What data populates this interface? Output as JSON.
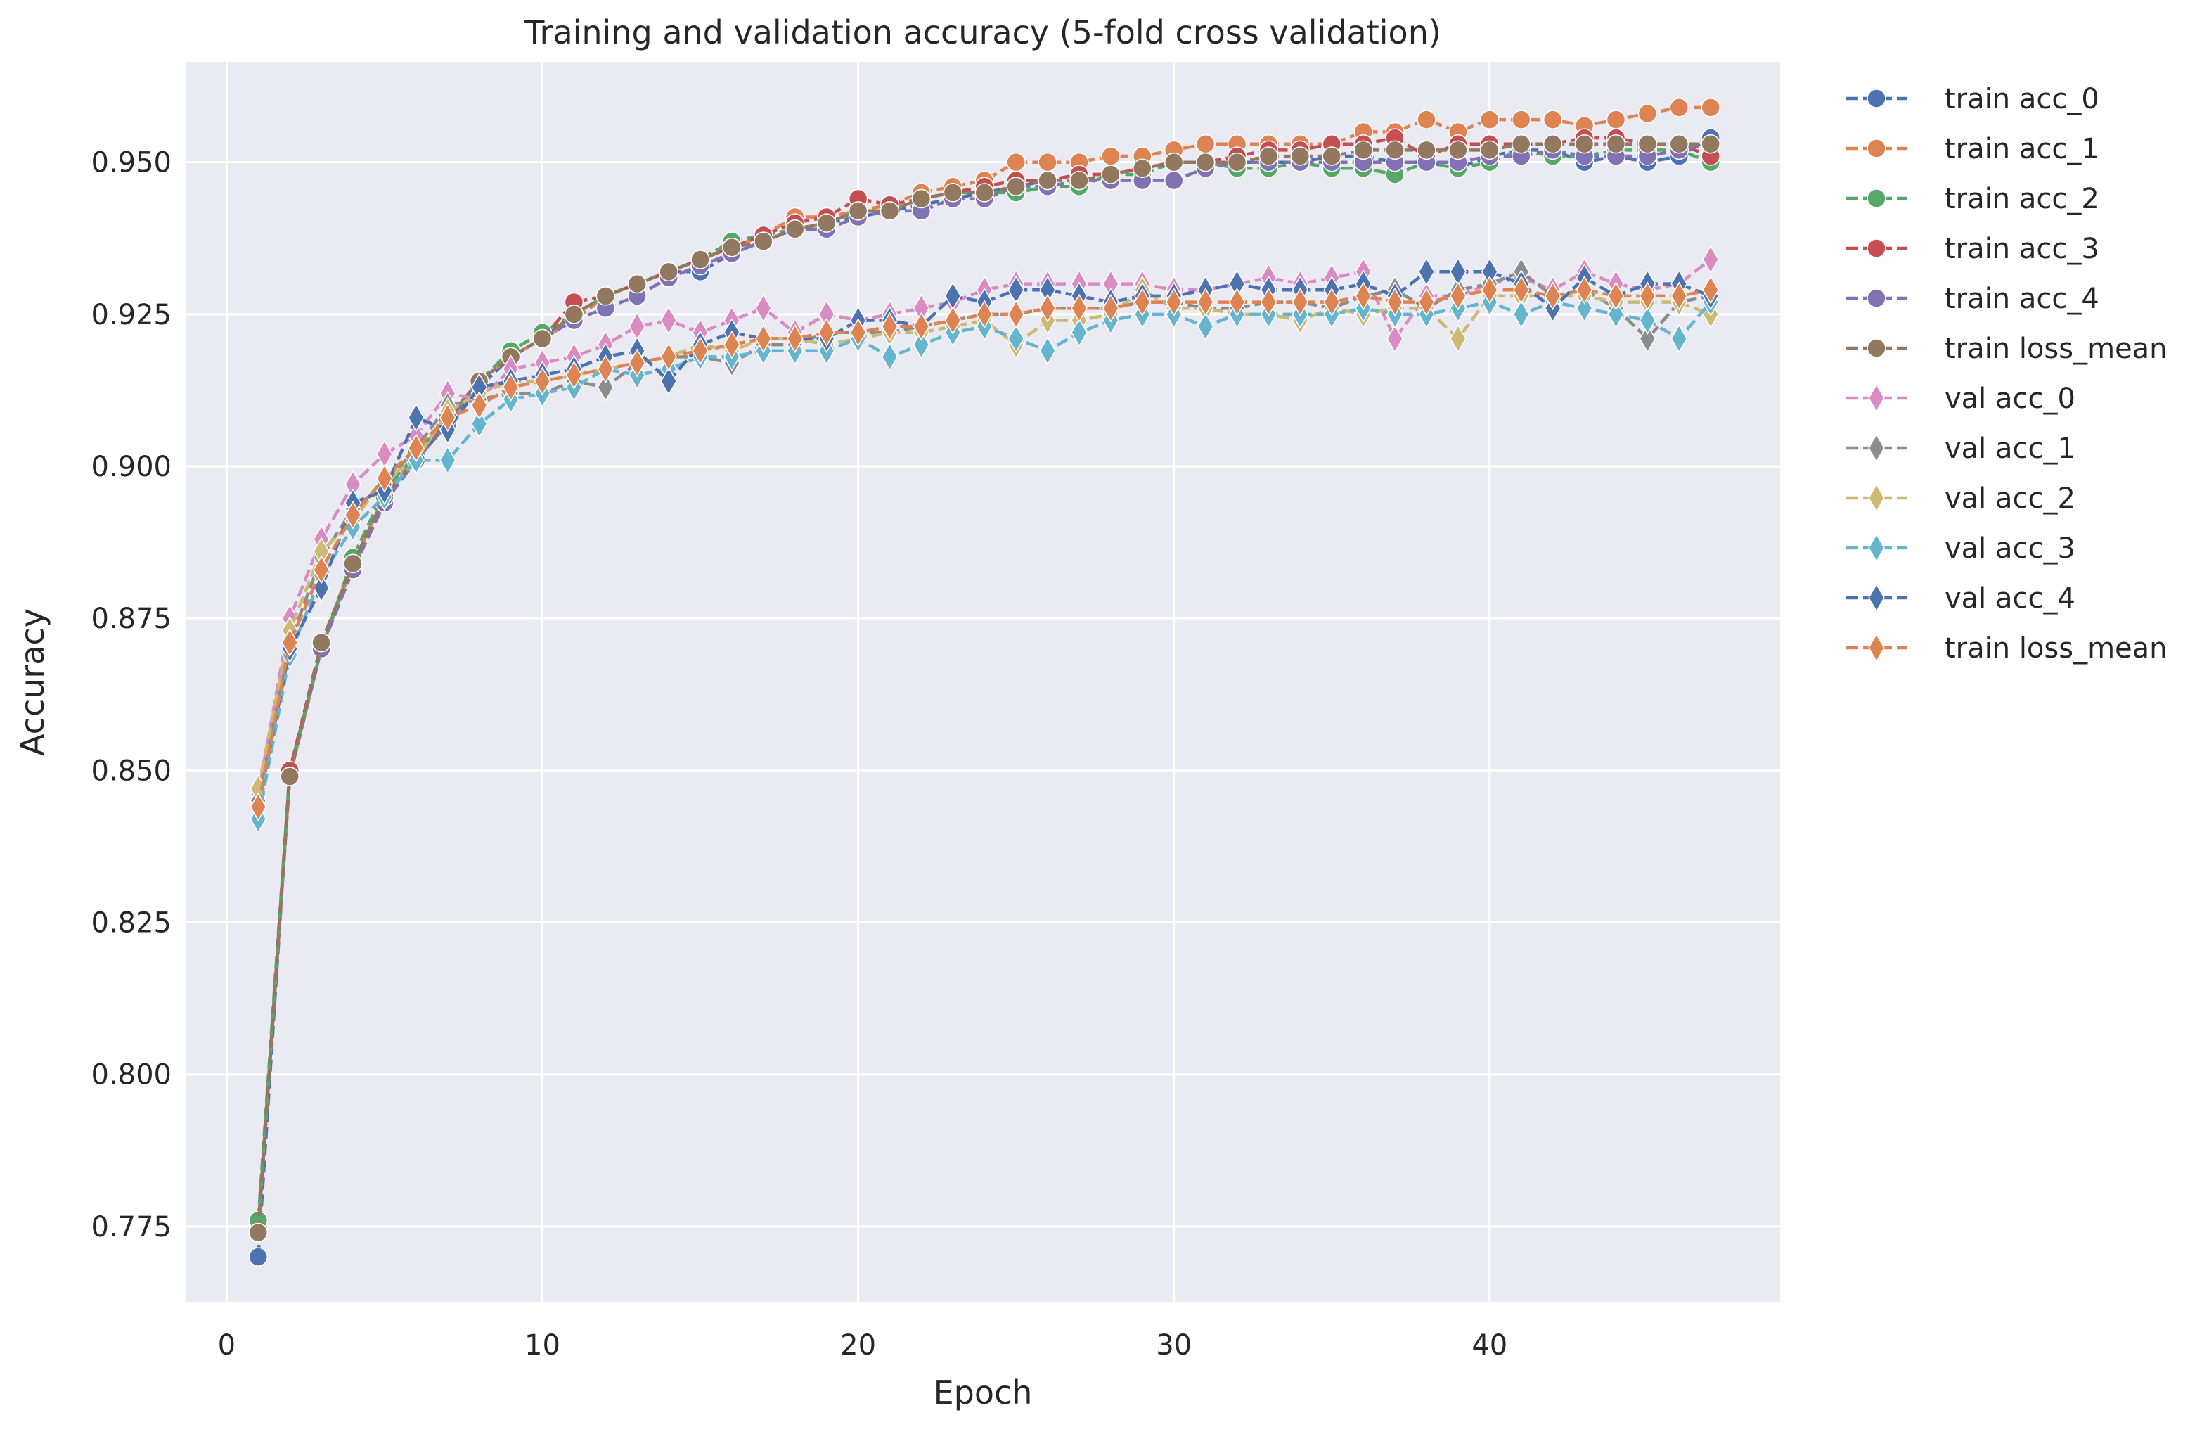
{
  "chart_data": {
    "type": "line",
    "title": "Training and validation accuracy (5-fold cross validation)",
    "xlabel": "Epoch",
    "ylabel": "Accuracy",
    "xlim": [
      -1.3,
      49.2
    ],
    "ylim": [
      0.7625,
      0.9665
    ],
    "xticks": [
      0,
      10,
      20,
      30,
      40
    ],
    "yticks": [
      0.775,
      0.8,
      0.825,
      0.85,
      0.875,
      0.9,
      0.925,
      0.95
    ],
    "ytick_labels": [
      "0.775",
      "0.800",
      "0.825",
      "0.850",
      "0.875",
      "0.900",
      "0.925",
      "0.950"
    ],
    "grid": true,
    "legend_position": "outside right",
    "series": [
      {
        "name": "train acc_0",
        "color": "#4c72b0",
        "marker": "circle",
        "values": [
          0.77,
          0.85,
          0.87,
          0.884,
          0.895,
          0.901,
          0.907,
          0.913,
          0.918,
          0.921,
          0.925,
          0.928,
          0.93,
          0.932,
          0.932,
          0.935,
          0.937,
          0.939,
          0.94,
          0.941,
          0.942,
          0.943,
          0.944,
          0.945,
          0.946,
          0.947,
          0.948,
          0.948,
          0.949,
          0.95,
          0.95,
          0.95,
          0.95,
          0.95,
          0.951,
          0.951,
          0.95,
          0.95,
          0.949,
          0.951,
          0.952,
          0.952,
          0.95,
          0.951,
          0.95,
          0.951,
          0.954
        ]
      },
      {
        "name": "train acc_1",
        "color": "#dd8452",
        "marker": "circle",
        "values": [
          0.775,
          0.849,
          0.87,
          0.884,
          0.895,
          0.902,
          0.908,
          0.914,
          0.918,
          0.921,
          0.924,
          0.928,
          0.93,
          0.932,
          0.934,
          0.936,
          0.938,
          0.941,
          0.941,
          0.942,
          0.943,
          0.945,
          0.946,
          0.947,
          0.95,
          0.95,
          0.95,
          0.951,
          0.951,
          0.952,
          0.953,
          0.953,
          0.953,
          0.953,
          0.953,
          0.955,
          0.955,
          0.957,
          0.955,
          0.957,
          0.957,
          0.957,
          0.956,
          0.957,
          0.958,
          0.959,
          0.959
        ]
      },
      {
        "name": "train acc_2",
        "color": "#55a868",
        "marker": "circle",
        "values": [
          0.776,
          0.85,
          0.87,
          0.885,
          0.896,
          0.902,
          0.908,
          0.914,
          0.919,
          0.922,
          0.925,
          0.928,
          0.93,
          0.932,
          0.934,
          0.937,
          0.938,
          0.939,
          0.94,
          0.942,
          0.942,
          0.944,
          0.945,
          0.945,
          0.945,
          0.946,
          0.946,
          0.948,
          0.948,
          0.95,
          0.95,
          0.949,
          0.949,
          0.95,
          0.949,
          0.949,
          0.948,
          0.95,
          0.949,
          0.95,
          0.952,
          0.951,
          0.951,
          0.952,
          0.952,
          0.952,
          0.95
        ]
      },
      {
        "name": "train acc_3",
        "color": "#c44e52",
        "marker": "circle",
        "values": [
          0.774,
          0.85,
          0.871,
          0.884,
          0.895,
          0.901,
          0.908,
          0.914,
          0.918,
          0.921,
          0.927,
          0.928,
          0.93,
          0.932,
          0.934,
          0.936,
          0.938,
          0.94,
          0.941,
          0.944,
          0.943,
          0.944,
          0.945,
          0.946,
          0.947,
          0.947,
          0.948,
          0.948,
          0.949,
          0.95,
          0.95,
          0.951,
          0.952,
          0.952,
          0.953,
          0.953,
          0.954,
          0.951,
          0.953,
          0.953,
          0.953,
          0.953,
          0.954,
          0.954,
          0.953,
          0.953,
          0.951
        ]
      },
      {
        "name": "train acc_4",
        "color": "#8172b3",
        "marker": "circle",
        "values": [
          0.774,
          0.849,
          0.87,
          0.883,
          0.894,
          0.901,
          0.907,
          0.914,
          0.918,
          0.921,
          0.924,
          0.926,
          0.928,
          0.931,
          0.933,
          0.935,
          0.937,
          0.939,
          0.939,
          0.941,
          0.942,
          0.942,
          0.944,
          0.944,
          0.946,
          0.946,
          0.947,
          0.947,
          0.947,
          0.947,
          0.949,
          0.95,
          0.95,
          0.95,
          0.95,
          0.95,
          0.95,
          0.95,
          0.95,
          0.951,
          0.951,
          0.952,
          0.951,
          0.951,
          0.951,
          0.952,
          0.953
        ]
      },
      {
        "name": "train loss_mean",
        "color": "#937860",
        "marker": "circle",
        "values": [
          0.774,
          0.849,
          0.871,
          0.884,
          0.895,
          0.901,
          0.908,
          0.914,
          0.918,
          0.921,
          0.925,
          0.928,
          0.93,
          0.932,
          0.934,
          0.936,
          0.937,
          0.939,
          0.94,
          0.942,
          0.942,
          0.944,
          0.945,
          0.945,
          0.946,
          0.947,
          0.947,
          0.948,
          0.949,
          0.95,
          0.95,
          0.95,
          0.951,
          0.951,
          0.951,
          0.952,
          0.952,
          0.952,
          0.952,
          0.952,
          0.953,
          0.953,
          0.953,
          0.953,
          0.953,
          0.953,
          0.953
        ]
      },
      {
        "name": "val acc_0",
        "color": "#da8bc3",
        "marker": "diamond",
        "values": [
          0.846,
          0.875,
          0.888,
          0.897,
          0.902,
          0.905,
          0.912,
          0.911,
          0.916,
          0.917,
          0.918,
          0.92,
          0.923,
          0.924,
          0.922,
          0.924,
          0.926,
          0.922,
          0.925,
          0.924,
          0.925,
          0.926,
          0.927,
          0.929,
          0.93,
          0.93,
          0.93,
          0.93,
          0.93,
          0.929,
          0.929,
          0.93,
          0.931,
          0.93,
          0.931,
          0.932,
          0.921,
          0.928,
          0.928,
          0.93,
          0.931,
          0.929,
          0.932,
          0.93,
          0.929,
          0.93,
          0.934
        ]
      },
      {
        "name": "val acc_1",
        "color": "#8c8c8c",
        "marker": "diamond",
        "values": [
          0.845,
          0.871,
          0.885,
          0.893,
          0.897,
          0.903,
          0.91,
          0.911,
          0.912,
          0.912,
          0.914,
          0.913,
          0.917,
          0.918,
          0.918,
          0.917,
          0.92,
          0.92,
          0.922,
          0.922,
          0.922,
          0.923,
          0.924,
          0.925,
          0.925,
          0.926,
          0.926,
          0.926,
          0.927,
          0.927,
          0.926,
          0.926,
          0.927,
          0.927,
          0.926,
          0.928,
          0.929,
          0.926,
          0.929,
          0.93,
          0.932,
          0.928,
          0.929,
          0.926,
          0.921,
          0.927,
          0.928
        ]
      },
      {
        "name": "val acc_2",
        "color": "#ccb974",
        "marker": "diamond",
        "values": [
          0.847,
          0.873,
          0.886,
          0.891,
          0.898,
          0.901,
          0.909,
          0.912,
          0.914,
          0.914,
          0.915,
          0.916,
          0.917,
          0.918,
          0.92,
          0.919,
          0.921,
          0.921,
          0.92,
          0.921,
          0.922,
          0.922,
          0.923,
          0.924,
          0.92,
          0.924,
          0.924,
          0.925,
          0.929,
          0.926,
          0.926,
          0.925,
          0.925,
          0.924,
          0.926,
          0.925,
          0.926,
          0.926,
          0.921,
          0.928,
          0.928,
          0.928,
          0.928,
          0.927,
          0.927,
          0.927,
          0.925
        ]
      },
      {
        "name": "val acc_3",
        "color": "#64b5cd",
        "marker": "diamond",
        "values": [
          0.842,
          0.869,
          0.882,
          0.89,
          0.895,
          0.901,
          0.901,
          0.907,
          0.911,
          0.912,
          0.913,
          0.916,
          0.915,
          0.916,
          0.918,
          0.918,
          0.919,
          0.919,
          0.919,
          0.921,
          0.918,
          0.92,
          0.922,
          0.923,
          0.921,
          0.919,
          0.922,
          0.924,
          0.925,
          0.925,
          0.923,
          0.925,
          0.925,
          0.925,
          0.925,
          0.926,
          0.925,
          0.925,
          0.926,
          0.927,
          0.925,
          0.927,
          0.926,
          0.925,
          0.924,
          0.921,
          0.927
        ]
      },
      {
        "name": "val acc_4",
        "color": "#4c72b0",
        "marker": "diamond",
        "values": [
          0.844,
          0.87,
          0.88,
          0.894,
          0.896,
          0.908,
          0.906,
          0.913,
          0.914,
          0.915,
          0.916,
          0.918,
          0.919,
          0.914,
          0.92,
          0.922,
          0.921,
          0.921,
          0.921,
          0.924,
          0.924,
          0.923,
          0.928,
          0.927,
          0.929,
          0.929,
          0.928,
          0.927,
          0.928,
          0.928,
          0.929,
          0.93,
          0.929,
          0.929,
          0.929,
          0.93,
          0.928,
          0.932,
          0.932,
          0.932,
          0.93,
          0.926,
          0.931,
          0.928,
          0.93,
          0.93,
          0.928
        ]
      },
      {
        "name": "train loss_mean",
        "color": "#dd8452",
        "marker": "diamond",
        "values": [
          0.844,
          0.871,
          0.883,
          0.892,
          0.898,
          0.903,
          0.908,
          0.91,
          0.913,
          0.914,
          0.915,
          0.916,
          0.917,
          0.918,
          0.919,
          0.92,
          0.921,
          0.921,
          0.922,
          0.922,
          0.923,
          0.923,
          0.924,
          0.925,
          0.925,
          0.926,
          0.926,
          0.926,
          0.927,
          0.927,
          0.927,
          0.927,
          0.927,
          0.927,
          0.927,
          0.928,
          0.927,
          0.927,
          0.928,
          0.929,
          0.929,
          0.928,
          0.929,
          0.928,
          0.928,
          0.928,
          0.929
        ]
      }
    ]
  }
}
